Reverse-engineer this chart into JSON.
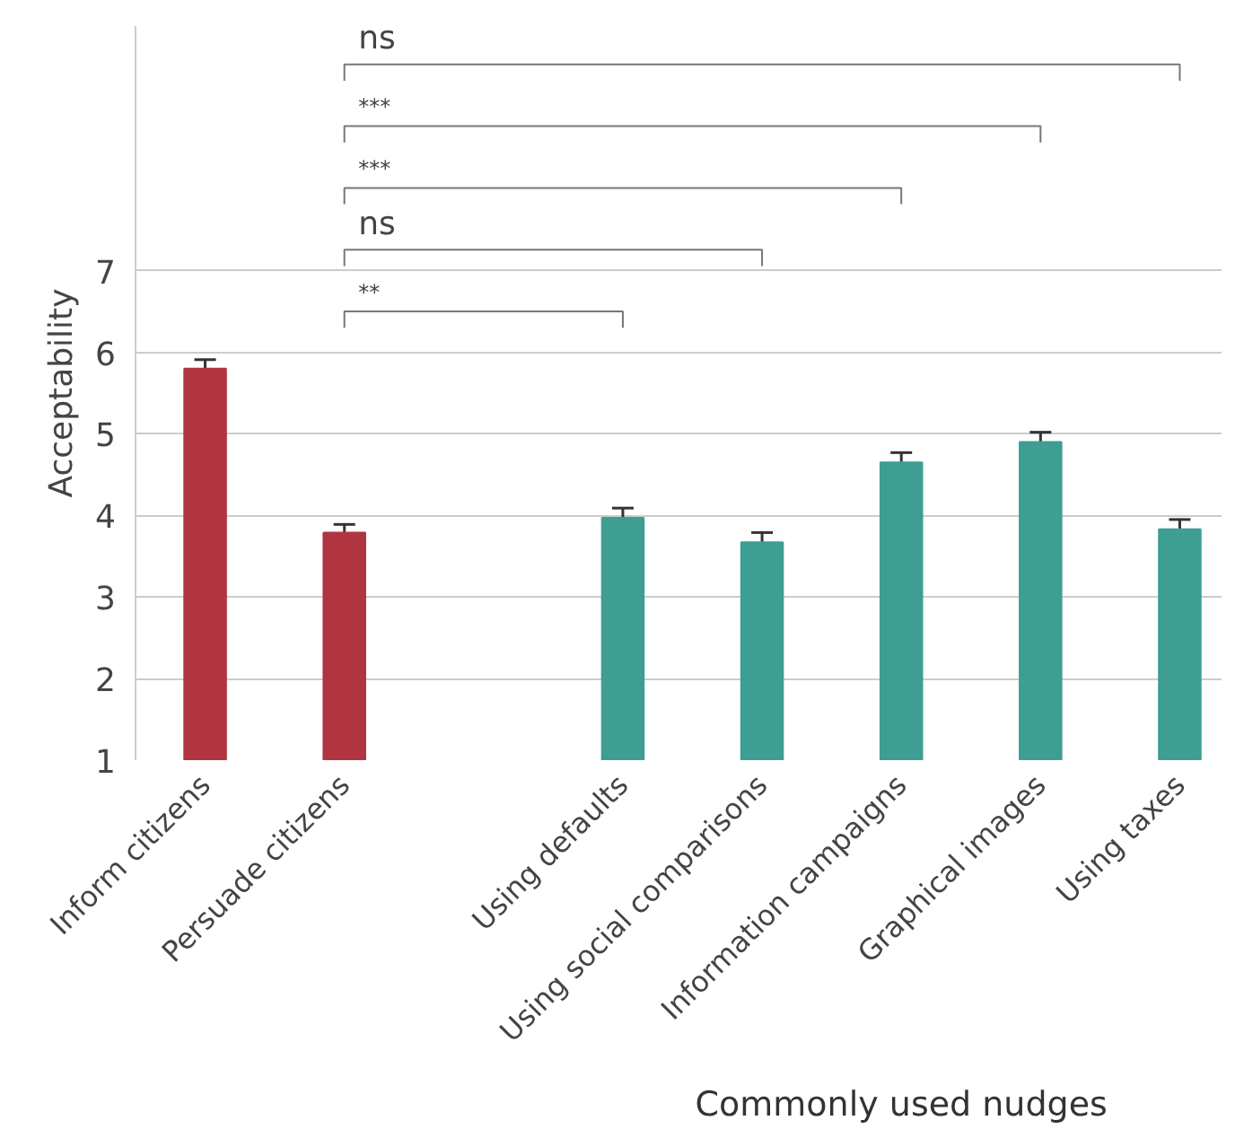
{
  "chart_data": {
    "type": "bar",
    "ylabel": "Acceptability",
    "categories": [
      "Inform citizens",
      "Persuade citizens",
      null,
      "Using defaults",
      "Using social comparisons",
      "Information campaigns",
      "Graphical images",
      "Using taxes"
    ],
    "values": [
      5.8,
      3.79,
      null,
      3.97,
      3.67,
      4.65,
      4.9,
      3.83
    ],
    "errors": [
      0.11,
      0.1,
      null,
      0.12,
      0.12,
      0.12,
      0.12,
      0.12
    ],
    "colors": [
      "#b03540",
      "#b03540",
      null,
      "#3d9e91",
      "#3d9e91",
      "#3d9e91",
      "#3d9e91",
      "#3d9e91"
    ],
    "ylim": [
      1,
      10
    ],
    "yticks": [
      1,
      2,
      3,
      4,
      5,
      6,
      7
    ],
    "grid": "y",
    "annotations": [
      "ns",
      "***",
      "***",
      "ns",
      "**",
      "Commonly used nudges"
    ]
  }
}
